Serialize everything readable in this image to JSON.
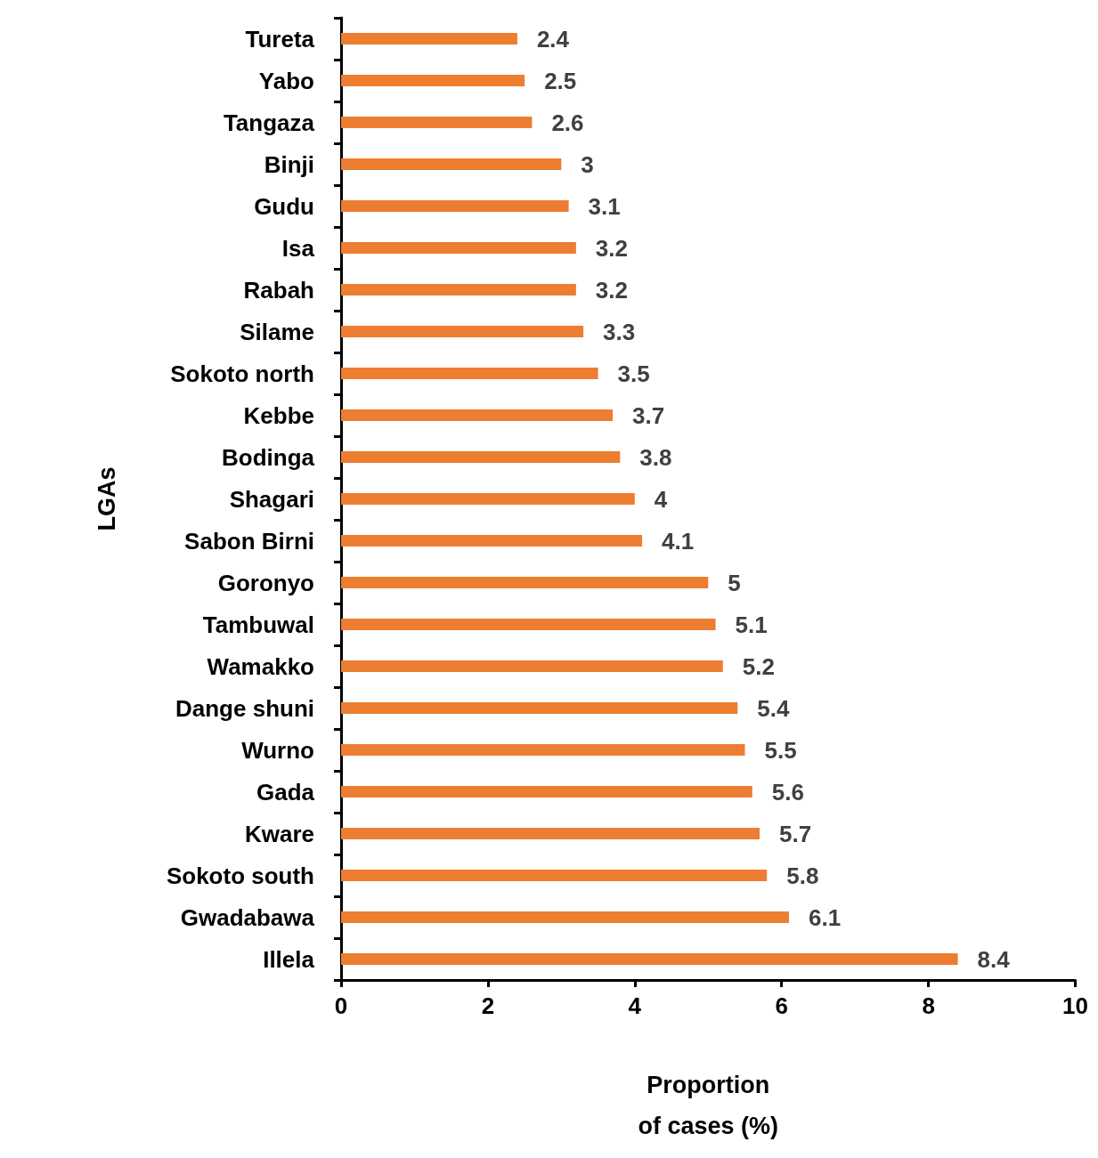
{
  "chart_data": {
    "type": "bar",
    "orientation": "horizontal",
    "xlabel": "Proportion\nof cases (%)",
    "ylabel": "LGAs",
    "categories": [
      "Tureta",
      "Yabo",
      "Tangaza",
      "Binji",
      "Gudu",
      "Isa",
      "Rabah",
      "Silame",
      "Sokoto north",
      "Kebbe",
      "Bodinga",
      "Shagari",
      "Sabon Birni",
      "Goronyo",
      "Tambuwal",
      "Wamakko",
      "Dange shuni",
      "Wurno",
      "Gada",
      "Kware",
      "Sokoto south",
      "Gwadabawa",
      "Illela"
    ],
    "values": [
      2.4,
      2.5,
      2.6,
      3,
      3.1,
      3.2,
      3.2,
      3.3,
      3.5,
      3.7,
      3.8,
      4,
      4.1,
      5,
      5.1,
      5.2,
      5.4,
      5.5,
      5.6,
      5.7,
      5.8,
      6.1,
      8.4
    ],
    "color": "#ed7d31",
    "xlim": [
      0,
      10
    ],
    "xticks": [
      0,
      2,
      4,
      6,
      8,
      10
    ],
    "grid": false,
    "data_labels": true
  }
}
